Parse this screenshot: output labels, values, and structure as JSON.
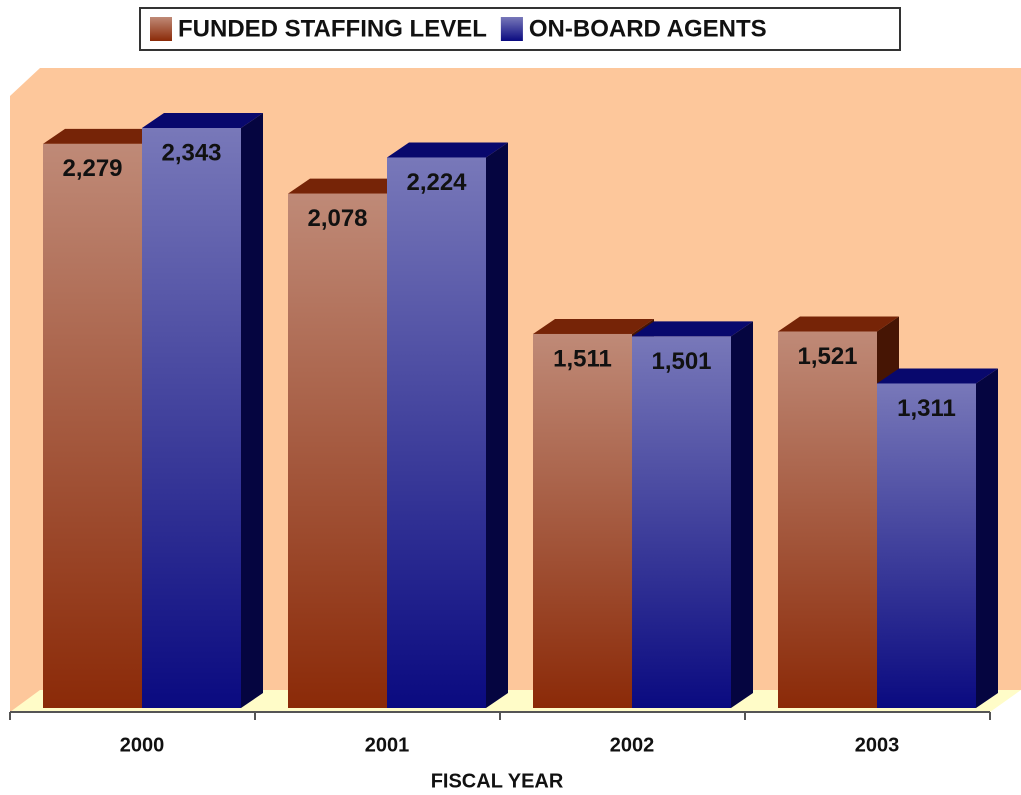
{
  "chart_data": {
    "type": "bar",
    "x_label": "FISCAL YEAR",
    "categories": [
      "2000",
      "2001",
      "2002",
      "2003"
    ],
    "series": [
      {
        "name": "FUNDED STAFFING LEVEL",
        "color": "#8b2a08",
        "values": [
          2279,
          2078,
          1511,
          1521
        ],
        "value_labels": [
          "2,279",
          "2,078",
          "1,511",
          "1,521"
        ]
      },
      {
        "name": "ON-BOARD AGENTS",
        "color": "#0a0a80",
        "values": [
          2343,
          2224,
          1501,
          1311
        ],
        "value_labels": [
          "2,343",
          "2,224",
          "1,501",
          "1,311"
        ]
      }
    ],
    "legend": "top"
  }
}
